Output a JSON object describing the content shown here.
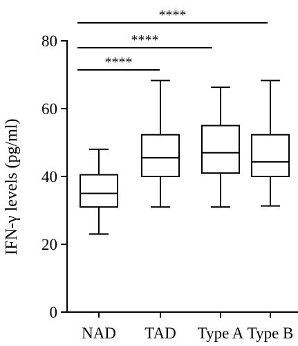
{
  "chart_data": {
    "type": "boxplot",
    "ylabel": "IFN-γ levels (pg/ml)",
    "ylim": [
      0,
      80
    ],
    "yticks": [
      0,
      20,
      40,
      60,
      80
    ],
    "categories": [
      "NAD",
      "TAD",
      "Type A",
      "Type B"
    ],
    "boxes": [
      {
        "category": "NAD",
        "min": 23,
        "q1": 31,
        "median": 35,
        "q3": 40.5,
        "max": 48
      },
      {
        "category": "TAD",
        "min": 31,
        "q1": 40,
        "median": 45.5,
        "q3": 52.3,
        "max": 68.3
      },
      {
        "category": "Type A",
        "min": 31,
        "q1": 41,
        "median": 47,
        "q3": 55,
        "max": 66.3
      },
      {
        "category": "Type B",
        "min": 31.3,
        "q1": 40,
        "median": 44.3,
        "q3": 52.3,
        "max": 68.3
      }
    ],
    "significance": [
      {
        "from": "NAD",
        "to": "TAD",
        "label": "****"
      },
      {
        "from": "NAD",
        "to": "Type A",
        "label": "****"
      },
      {
        "from": "NAD",
        "to": "Type B",
        "label": "****"
      }
    ],
    "grid": false
  }
}
